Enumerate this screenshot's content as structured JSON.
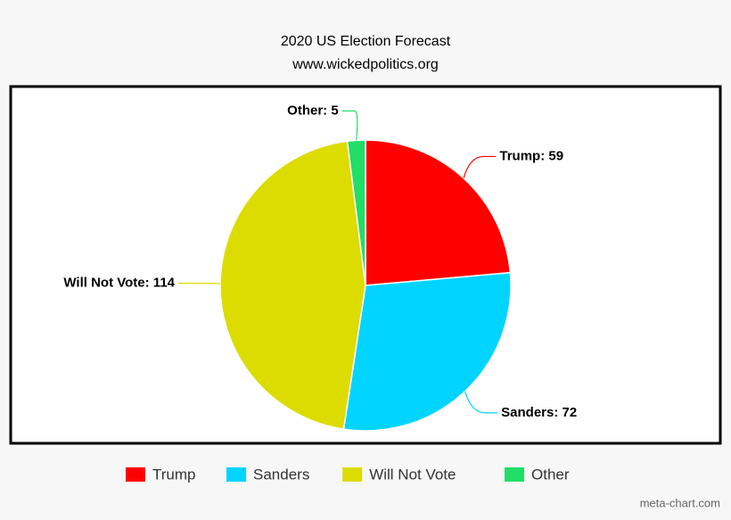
{
  "chart_data": {
    "type": "pie",
    "title": "2020 US Election Forecast",
    "subtitle": "www.wickedpolitics.org",
    "credit": "meta-chart.com",
    "categories": [
      "Trump",
      "Sanders",
      "Will Not Vote",
      "Other"
    ],
    "values": [
      59,
      72,
      114,
      5
    ],
    "value_labels": [
      "Trump: 59",
      "Sanders: 72",
      "Will Not Vote: 114",
      "Other: 5"
    ],
    "colors": [
      "#ff0000",
      "#00d4ff",
      "#dcdc00",
      "#22dd66"
    ],
    "legend": "bottom"
  }
}
